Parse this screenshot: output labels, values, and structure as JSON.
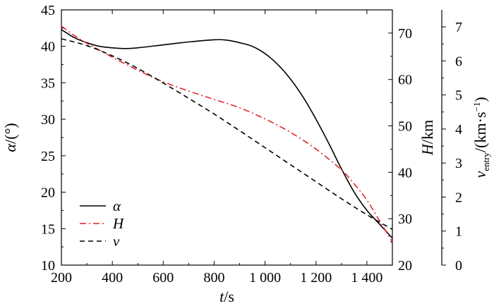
{
  "chart_data": {
    "type": "line",
    "title": "",
    "x_axis": {
      "label_var": "t",
      "label_unit": "/s",
      "range": [
        200,
        1500
      ],
      "ticks": [
        200,
        400,
        600,
        800,
        1000,
        1200,
        1400
      ],
      "tick_labels": [
        "200",
        "400",
        "600",
        "800",
        "1 000",
        "1 200",
        "1 400"
      ]
    },
    "y_axis_left": {
      "label_var": "α",
      "label_unit": "/(°)",
      "range": [
        10,
        45
      ],
      "ticks": [
        10,
        15,
        20,
        25,
        30,
        35,
        40,
        45
      ],
      "tick_labels": [
        "10",
        "15",
        "20",
        "25",
        "30",
        "35",
        "40",
        "45"
      ]
    },
    "y_axis_right1": {
      "label_var": "H",
      "label_unit": "/km",
      "range": [
        20,
        75
      ],
      "ticks": [
        20,
        30,
        40,
        50,
        60,
        70
      ],
      "tick_labels": [
        "20",
        "30",
        "40",
        "50",
        "60",
        "70"
      ]
    },
    "y_axis_right2": {
      "label_var": "v",
      "label_sub": "entry",
      "label_unit": "/(km·s",
      "label_sup": "−1",
      "label_close": ")",
      "range": [
        0,
        7.5
      ],
      "ticks": [
        0,
        1,
        2,
        3,
        4,
        5,
        6,
        7
      ],
      "tick_labels": [
        "0",
        "1",
        "2",
        "3",
        "4",
        "5",
        "6",
        "7"
      ]
    },
    "legend_position": "bottom-left",
    "series": [
      {
        "name": "α",
        "axis": "left",
        "color": "#000000",
        "style": "solid",
        "points": [
          [
            200,
            42.3
          ],
          [
            250,
            41.2
          ],
          [
            300,
            40.5
          ],
          [
            350,
            40.0
          ],
          [
            400,
            39.8
          ],
          [
            450,
            39.7
          ],
          [
            500,
            39.8
          ],
          [
            600,
            40.2
          ],
          [
            700,
            40.6
          ],
          [
            800,
            40.9
          ],
          [
            850,
            40.85
          ],
          [
            900,
            40.5
          ],
          [
            950,
            40.0
          ],
          [
            1000,
            39.0
          ],
          [
            1050,
            37.5
          ],
          [
            1100,
            35.5
          ],
          [
            1150,
            33.0
          ],
          [
            1200,
            30.0
          ],
          [
            1250,
            26.7
          ],
          [
            1300,
            23.2
          ],
          [
            1350,
            20.0
          ],
          [
            1400,
            17.5
          ],
          [
            1450,
            15.6
          ],
          [
            1500,
            13.7
          ]
        ]
      },
      {
        "name": "H",
        "axis": "right1",
        "color": "#e0252a",
        "style": "dash-dot",
        "points": [
          [
            200,
            71.5
          ],
          [
            250,
            69.5
          ],
          [
            300,
            67.8
          ],
          [
            350,
            66.3
          ],
          [
            400,
            64.8
          ],
          [
            500,
            62.0
          ],
          [
            600,
            59.5
          ],
          [
            700,
            57.5
          ],
          [
            800,
            55.7
          ],
          [
            900,
            53.9
          ],
          [
            1000,
            51.5
          ],
          [
            1100,
            48.6
          ],
          [
            1200,
            45.0
          ],
          [
            1300,
            40.5
          ],
          [
            1350,
            37.5
          ],
          [
            1400,
            34.0
          ],
          [
            1450,
            29.5
          ],
          [
            1500,
            25.0
          ]
        ]
      },
      {
        "name": "v",
        "axis": "right2",
        "color": "#000000",
        "style": "dashed",
        "points": [
          [
            200,
            6.65
          ],
          [
            300,
            6.45
          ],
          [
            400,
            6.15
          ],
          [
            500,
            5.78
          ],
          [
            600,
            5.35
          ],
          [
            700,
            4.9
          ],
          [
            800,
            4.44
          ],
          [
            900,
            3.95
          ],
          [
            1000,
            3.45
          ],
          [
            1100,
            2.95
          ],
          [
            1200,
            2.45
          ],
          [
            1300,
            1.95
          ],
          [
            1400,
            1.48
          ],
          [
            1500,
            1.05
          ]
        ]
      }
    ]
  }
}
